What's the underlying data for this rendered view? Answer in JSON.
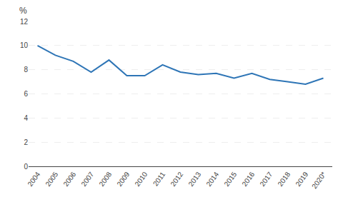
{
  "chart_data": {
    "type": "line",
    "categories": [
      "2004",
      "2005",
      "2006",
      "2007",
      "2008",
      "2009",
      "2010",
      "2011",
      "2012",
      "2013",
      "2014",
      "2015",
      "2016",
      "2017",
      "2018",
      "2019",
      "2020*"
    ],
    "values": [
      10.0,
      9.2,
      8.7,
      7.8,
      8.8,
      7.5,
      7.5,
      8.4,
      7.8,
      7.6,
      7.7,
      7.3,
      7.7,
      7.2,
      7.0,
      6.8,
      7.3
    ],
    "color": "#2e75b6",
    "ylim": [
      0,
      12
    ],
    "yticks": [
      0,
      2,
      4,
      6,
      8,
      10,
      12
    ],
    "ylabel": "%",
    "grid": true
  }
}
